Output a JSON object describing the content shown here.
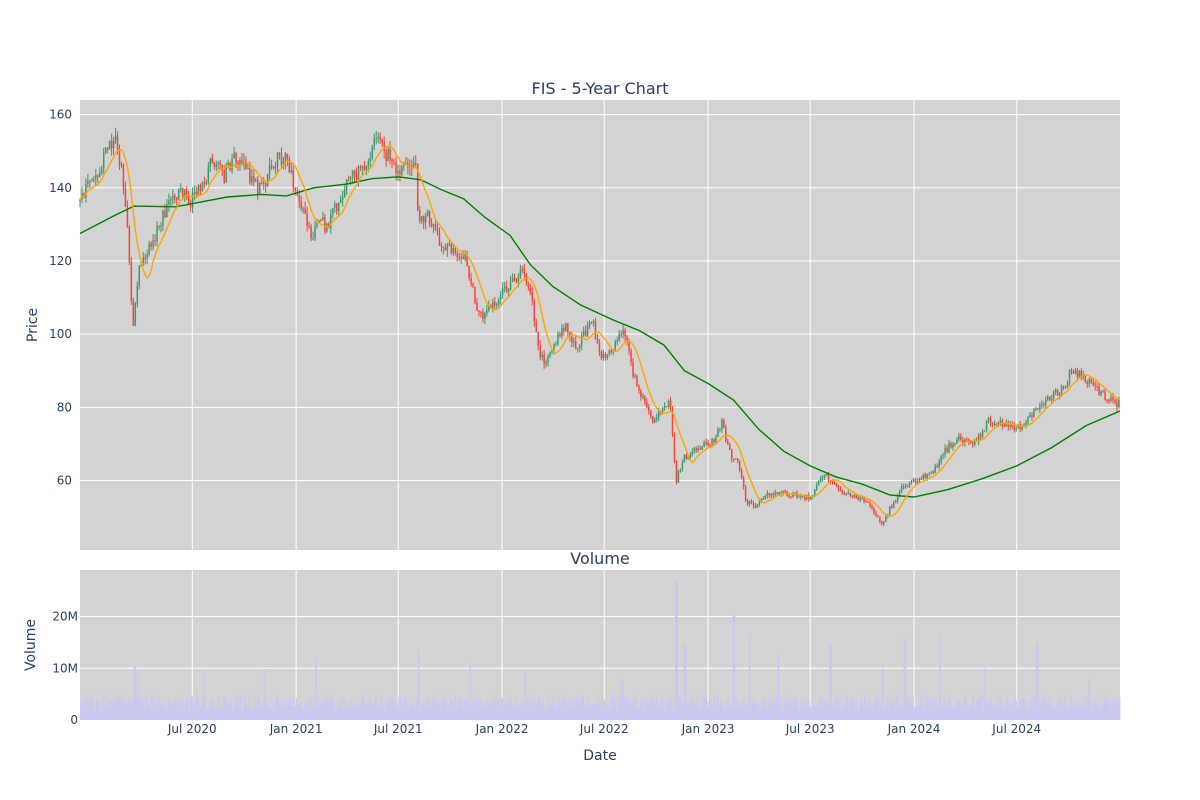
{
  "chart_data": [
    {
      "type": "candlestick",
      "title": "FIS - 5-Year Chart",
      "ylabel": "Price",
      "ylim": [
        41,
        164
      ],
      "y_ticks": [
        60,
        80,
        100,
        120,
        140,
        160
      ],
      "x_range": [
        "2019-12-15",
        "2024-12-31"
      ],
      "x_ticks": [
        {
          "date": "2020-07-01",
          "label": "Jul 2020"
        },
        {
          "date": "2021-01-01",
          "label": "Jan 2021"
        },
        {
          "date": "2021-07-01",
          "label": "Jul 2021"
        },
        {
          "date": "2022-01-01",
          "label": "Jan 2022"
        },
        {
          "date": "2022-07-01",
          "label": "Jul 2022"
        },
        {
          "date": "2023-01-01",
          "label": "Jan 2023"
        },
        {
          "date": "2023-07-01",
          "label": "Jul 2023"
        },
        {
          "date": "2024-01-01",
          "label": "Jan 2024"
        },
        {
          "date": "2024-07-01",
          "label": "Jul 2024"
        }
      ],
      "grid": true,
      "colors": {
        "up": "#3d9970",
        "down": "#ff4136",
        "ma_short": "#ffa500",
        "ma_long": "#008000",
        "plot_bg": "#d3d3d3"
      },
      "close_anchors": [
        [
          "2019-12-15",
          138
        ],
        [
          "2020-01-10",
          142
        ],
        [
          "2020-01-25",
          148
        ],
        [
          "2020-02-15",
          154
        ],
        [
          "2020-02-25",
          146
        ],
        [
          "2020-03-05",
          136
        ],
        [
          "2020-03-18",
          100
        ],
        [
          "2020-03-28",
          118
        ],
        [
          "2020-04-15",
          124
        ],
        [
          "2020-05-01",
          128
        ],
        [
          "2020-05-20",
          136
        ],
        [
          "2020-06-10",
          140
        ],
        [
          "2020-06-25",
          136
        ],
        [
          "2020-07-10",
          138
        ],
        [
          "2020-08-05",
          147
        ],
        [
          "2020-08-25",
          143
        ],
        [
          "2020-09-10",
          148
        ],
        [
          "2020-10-01",
          146
        ],
        [
          "2020-10-20",
          140
        ],
        [
          "2020-11-05",
          141
        ],
        [
          "2020-11-20",
          147
        ],
        [
          "2020-12-10",
          149
        ],
        [
          "2020-12-28",
          141
        ],
        [
          "2021-01-15",
          134
        ],
        [
          "2021-01-28",
          126
        ],
        [
          "2021-02-10",
          132
        ],
        [
          "2021-02-25",
          129
        ],
        [
          "2021-03-15",
          136
        ],
        [
          "2021-04-05",
          143
        ],
        [
          "2021-04-25",
          145
        ],
        [
          "2021-05-10",
          148
        ],
        [
          "2021-05-25",
          153
        ],
        [
          "2021-06-10",
          149
        ],
        [
          "2021-06-28",
          146
        ],
        [
          "2021-07-20",
          145
        ],
        [
          "2021-08-01",
          148
        ],
        [
          "2021-08-05",
          130
        ],
        [
          "2021-08-20",
          133
        ],
        [
          "2021-09-10",
          126
        ],
        [
          "2021-10-05",
          122
        ],
        [
          "2021-10-25",
          122
        ],
        [
          "2021-11-05",
          115
        ],
        [
          "2021-11-20",
          105
        ],
        [
          "2021-12-05",
          106
        ],
        [
          "2021-12-25",
          110
        ],
        [
          "2022-01-20",
          115
        ],
        [
          "2022-02-05",
          117
        ],
        [
          "2022-02-20",
          113
        ],
        [
          "2022-03-05",
          96
        ],
        [
          "2022-03-20",
          92
        ],
        [
          "2022-04-05",
          98
        ],
        [
          "2022-04-25",
          102
        ],
        [
          "2022-05-10",
          96
        ],
        [
          "2022-05-25",
          100
        ],
        [
          "2022-06-10",
          104
        ],
        [
          "2022-06-25",
          93
        ],
        [
          "2022-07-15",
          95
        ],
        [
          "2022-08-01",
          101
        ],
        [
          "2022-08-10",
          98
        ],
        [
          "2022-08-20",
          90
        ],
        [
          "2022-09-05",
          83
        ],
        [
          "2022-09-25",
          76
        ],
        [
          "2022-10-15",
          80
        ],
        [
          "2022-10-25",
          82
        ],
        [
          "2022-11-05",
          60
        ],
        [
          "2022-11-20",
          66
        ],
        [
          "2022-12-05",
          68
        ],
        [
          "2022-12-20",
          69
        ],
        [
          "2023-01-10",
          71
        ],
        [
          "2023-01-25",
          76
        ],
        [
          "2023-02-10",
          67
        ],
        [
          "2023-02-25",
          64
        ],
        [
          "2023-03-10",
          54
        ],
        [
          "2023-03-25",
          53
        ],
        [
          "2023-04-15",
          56
        ],
        [
          "2023-05-05",
          57
        ],
        [
          "2023-05-25",
          56
        ],
        [
          "2023-06-15",
          56
        ],
        [
          "2023-07-01",
          55
        ],
        [
          "2023-07-15",
          60
        ],
        [
          "2023-08-01",
          61
        ],
        [
          "2023-08-20",
          57
        ],
        [
          "2023-09-10",
          56
        ],
        [
          "2023-10-01",
          55
        ],
        [
          "2023-10-20",
          52
        ],
        [
          "2023-11-05",
          48
        ],
        [
          "2023-11-25",
          54
        ],
        [
          "2023-12-15",
          59
        ],
        [
          "2024-01-10",
          60
        ],
        [
          "2024-02-05",
          63
        ],
        [
          "2024-02-25",
          68
        ],
        [
          "2024-03-20",
          72
        ],
        [
          "2024-04-10",
          70
        ],
        [
          "2024-04-25",
          72
        ],
        [
          "2024-05-10",
          76
        ],
        [
          "2024-06-05",
          76
        ],
        [
          "2024-06-25",
          75
        ],
        [
          "2024-07-15",
          75
        ],
        [
          "2024-08-01",
          79
        ],
        [
          "2024-08-20",
          82
        ],
        [
          "2024-09-10",
          84
        ],
        [
          "2024-09-25",
          86
        ],
        [
          "2024-10-05",
          90
        ],
        [
          "2024-10-20",
          89
        ],
        [
          "2024-11-05",
          87
        ],
        [
          "2024-11-20",
          85
        ],
        [
          "2024-12-05",
          83
        ],
        [
          "2024-12-20",
          81
        ],
        [
          "2024-12-31",
          81
        ]
      ],
      "ma_long_anchors": [
        [
          "2019-12-15",
          127.5
        ],
        [
          "2020-02-15",
          132.5
        ],
        [
          "2020-03-20",
          135
        ],
        [
          "2020-06-01",
          134.8
        ],
        [
          "2020-09-01",
          137.5
        ],
        [
          "2020-11-01",
          138.2
        ],
        [
          "2020-12-15",
          137.8
        ],
        [
          "2021-02-01",
          140
        ],
        [
          "2021-04-01",
          141
        ],
        [
          "2021-05-15",
          142.5
        ],
        [
          "2021-07-01",
          143
        ],
        [
          "2021-08-10",
          142.2
        ],
        [
          "2021-09-15",
          139.5
        ],
        [
          "2021-10-25",
          137
        ],
        [
          "2021-12-01",
          132
        ],
        [
          "2022-01-15",
          127
        ],
        [
          "2022-02-20",
          119
        ],
        [
          "2022-04-01",
          113
        ],
        [
          "2022-05-20",
          108
        ],
        [
          "2022-07-15",
          104
        ],
        [
          "2022-09-01",
          101
        ],
        [
          "2022-10-15",
          97
        ],
        [
          "2022-11-20",
          90
        ],
        [
          "2023-01-01",
          86.5
        ],
        [
          "2023-02-15",
          82
        ],
        [
          "2023-04-01",
          74
        ],
        [
          "2023-05-15",
          68
        ],
        [
          "2023-07-01",
          64
        ],
        [
          "2023-08-15",
          61
        ],
        [
          "2023-10-01",
          59
        ],
        [
          "2023-11-20",
          56
        ],
        [
          "2024-01-01",
          55.5
        ],
        [
          "2024-03-01",
          57.5
        ],
        [
          "2024-05-01",
          60.5
        ],
        [
          "2024-07-01",
          64
        ],
        [
          "2024-09-01",
          69
        ],
        [
          "2024-11-01",
          75
        ],
        [
          "2024-12-31",
          79
        ]
      ]
    },
    {
      "type": "bar",
      "title": "Volume",
      "xlabel": "Date",
      "ylabel": "Volume",
      "ylim": [
        0,
        29000000
      ],
      "y_ticks": [
        {
          "value": 0,
          "label": "0"
        },
        {
          "value": 10000000,
          "label": "10M"
        },
        {
          "value": 20000000,
          "label": "20M"
        }
      ],
      "base_volume": 3500000,
      "color": "#c8c8f0",
      "spikes": [
        [
          "2020-03-20",
          10500000
        ],
        [
          "2020-03-25",
          9000000
        ],
        [
          "2020-07-20",
          9500000
        ],
        [
          "2020-11-05",
          9500000
        ],
        [
          "2021-02-05",
          12000000
        ],
        [
          "2021-08-05",
          13500000
        ],
        [
          "2021-11-05",
          11000000
        ],
        [
          "2022-02-10",
          9000000
        ],
        [
          "2022-08-01",
          8000000
        ],
        [
          "2022-11-05",
          27000000
        ],
        [
          "2022-11-20",
          14500000
        ],
        [
          "2023-02-15",
          20500000
        ],
        [
          "2023-03-15",
          16500000
        ],
        [
          "2023-05-05",
          13000000
        ],
        [
          "2023-08-05",
          15000000
        ],
        [
          "2023-11-05",
          10000000
        ],
        [
          "2023-12-15",
          15500000
        ],
        [
          "2024-02-15",
          16000000
        ],
        [
          "2024-05-05",
          10000000
        ],
        [
          "2024-08-05",
          15000000
        ],
        [
          "2024-11-05",
          8000000
        ]
      ]
    }
  ]
}
